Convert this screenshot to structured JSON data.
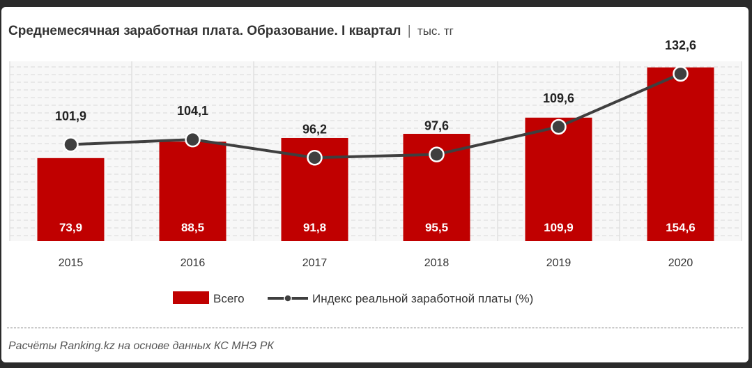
{
  "header": {
    "title": "Среднемесячная заработная плата. Образование. I квартал",
    "separator": "|",
    "unit": "тыс. тг"
  },
  "footer": {
    "source": "Расчёты Ranking.kz на основе данных КС МНЭ РК"
  },
  "colors": {
    "bar": "#c00000",
    "line": "#3f3f3f",
    "marker": "#3f3f3f"
  },
  "chart_data": {
    "type": "bar",
    "categories": [
      "2015",
      "2016",
      "2017",
      "2018",
      "2019",
      "2020"
    ],
    "series": [
      {
        "name": "Всего",
        "type": "bar",
        "values": [
          73.9,
          88.5,
          91.8,
          95.5,
          109.9,
          154.6
        ],
        "labels": [
          "73,9",
          "88,5",
          "91,8",
          "95,5",
          "109,9",
          "154,6"
        ]
      },
      {
        "name": "Индекс реальной заработной платы (%)",
        "type": "line",
        "values": [
          101.9,
          104.1,
          96.2,
          97.6,
          109.6,
          132.6
        ],
        "labels": [
          "101,9",
          "104,1",
          "96,2",
          "97,6",
          "109,6",
          "132,6"
        ]
      }
    ],
    "legend": "bottom",
    "grid": true
  }
}
